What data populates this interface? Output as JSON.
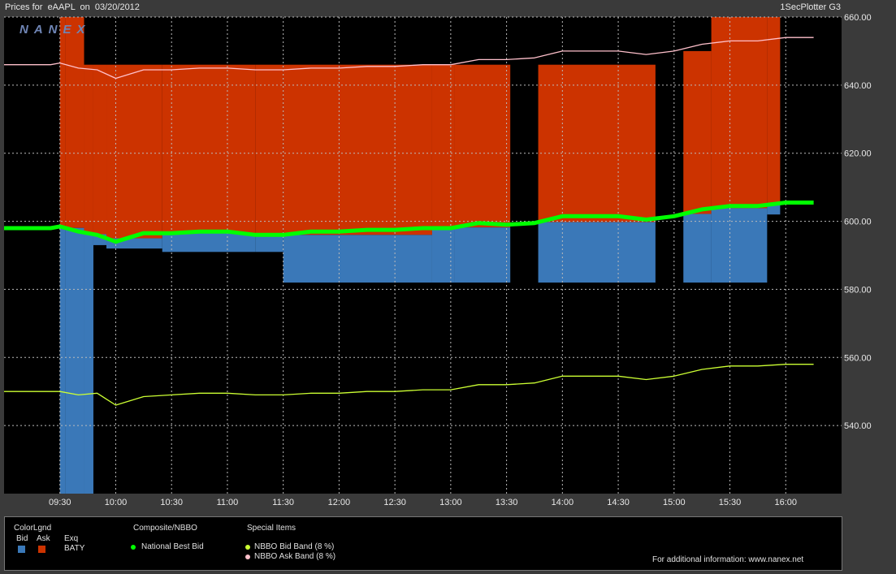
{
  "header": {
    "left": "Prices for  eAAPL  on  03/20/2012",
    "right": "1SecPlotter G3",
    "logo": "NANEX"
  },
  "chart_data": {
    "type": "line",
    "title": "",
    "xlabel": "",
    "ylabel": "",
    "x_ticks": [
      "09:30",
      "10:00",
      "10:30",
      "11:00",
      "11:30",
      "12:00",
      "12:30",
      "13:00",
      "13:30",
      "14:00",
      "14:30",
      "15:00",
      "15:30",
      "16:00"
    ],
    "y_ticks": [
      "660.00",
      "640.00",
      "620.00",
      "600.00",
      "580.00",
      "560.00",
      "540.00"
    ],
    "ylim": [
      520,
      660
    ],
    "xlim": [
      "09:00",
      "16:30"
    ],
    "grid": true,
    "y_axis_position": "right",
    "series": [
      {
        "name": "National Best Bid",
        "color": "#00ff00",
        "x": [
          "09:00",
          "09:25",
          "09:30",
          "09:40",
          "09:50",
          "10:00",
          "10:15",
          "10:30",
          "10:45",
          "11:00",
          "11:15",
          "11:30",
          "11:45",
          "12:00",
          "12:15",
          "12:30",
          "12:45",
          "13:00",
          "13:15",
          "13:30",
          "13:45",
          "14:00",
          "14:15",
          "14:30",
          "14:45",
          "15:00",
          "15:15",
          "15:30",
          "15:45",
          "16:00",
          "16:15"
        ],
        "values": [
          598,
          598,
          598.5,
          597,
          596,
          594,
          596.5,
          596.5,
          597,
          597,
          596,
          596,
          597,
          597,
          597.5,
          597.5,
          598,
          598,
          599.5,
          599,
          599.5,
          601.5,
          601.5,
          601.5,
          600.5,
          601.5,
          603.5,
          604.5,
          604.5,
          605.5,
          605.5
        ]
      },
      {
        "name": "NBBO Bid Band (8 %)",
        "color": "#ccff33",
        "x": [
          "09:00",
          "09:25",
          "09:30",
          "09:40",
          "09:50",
          "10:00",
          "10:15",
          "10:30",
          "10:45",
          "11:00",
          "11:15",
          "11:30",
          "11:45",
          "12:00",
          "12:15",
          "12:30",
          "12:45",
          "13:00",
          "13:15",
          "13:30",
          "13:45",
          "14:00",
          "14:15",
          "14:30",
          "14:45",
          "15:00",
          "15:15",
          "15:30",
          "15:45",
          "16:00",
          "16:15"
        ],
        "values": [
          550,
          550,
          550,
          549,
          549.5,
          546,
          548.5,
          549,
          549.5,
          549.5,
          549,
          549,
          549.5,
          549.5,
          550,
          550,
          550.5,
          550.5,
          552,
          552,
          552.5,
          554.5,
          554.5,
          554.5,
          553.5,
          554.5,
          556.5,
          557.5,
          557.5,
          558,
          558
        ]
      },
      {
        "name": "NBBO Ask Band (8 %)",
        "color": "#ffc0cb",
        "x": [
          "09:00",
          "09:25",
          "09:30",
          "09:40",
          "09:50",
          "10:00",
          "10:15",
          "10:30",
          "10:45",
          "11:00",
          "11:15",
          "11:30",
          "11:45",
          "12:00",
          "12:15",
          "12:30",
          "12:45",
          "13:00",
          "13:15",
          "13:30",
          "13:45",
          "14:00",
          "14:15",
          "14:30",
          "14:45",
          "15:00",
          "15:15",
          "15:30",
          "15:45",
          "16:00",
          "16:15"
        ],
        "values": [
          646,
          646,
          646.5,
          645,
          644.5,
          642,
          644.5,
          644.5,
          645,
          645,
          644.5,
          644.5,
          645,
          645,
          645.5,
          645.5,
          646,
          646,
          647.5,
          647.5,
          648,
          650,
          650,
          650,
          649,
          650,
          652,
          653,
          653,
          654,
          654
        ]
      }
    ],
    "exchange_bands": {
      "exchange": "BATY",
      "bid_color": "#3a78b8",
      "ask_color": "#cc3300",
      "segments": [
        {
          "from": "09:30",
          "to": "09:33",
          "bid_low": 520,
          "ask_high": 660
        },
        {
          "from": "09:33",
          "to": "09:43",
          "bid_low": 520,
          "ask_high": 660
        },
        {
          "from": "09:43",
          "to": "09:48",
          "bid_low": 520,
          "ask_high": 646
        },
        {
          "from": "09:48",
          "to": "09:55",
          "bid_low": 593,
          "ask_high": 646
        },
        {
          "from": "09:55",
          "to": "10:25",
          "bid_low": 592,
          "ask_high": 646
        },
        {
          "from": "10:25",
          "to": "11:15",
          "bid_low": 591,
          "ask_high": 646
        },
        {
          "from": "11:15",
          "to": "11:30",
          "bid_low": 591,
          "ask_high": 646
        },
        {
          "from": "11:30",
          "to": "12:50",
          "bid_low": 582,
          "ask_high": 646
        },
        {
          "from": "12:50",
          "to": "13:02",
          "bid_low": 582,
          "ask_high": 646
        },
        {
          "from": "13:02",
          "to": "13:32",
          "bid_low": 582,
          "ask_high": 646
        },
        {
          "from": "13:47",
          "to": "14:50",
          "bid_low": 582,
          "ask_high": 646
        },
        {
          "from": "15:05",
          "to": "15:20",
          "bid_low": 582,
          "ask_high": 650
        },
        {
          "from": "15:20",
          "to": "15:50",
          "bid_low": 582,
          "ask_high": 660
        },
        {
          "from": "15:50",
          "to": "15:57",
          "bid_low": 602,
          "ask_high": 660
        }
      ]
    }
  },
  "legend": {
    "colorlgnd_title": "ColorLgnd",
    "bid_label": "Bid",
    "ask_label": "Ask",
    "exq_label": "Exq",
    "exchange": "BATY",
    "composite_title": "Composite/NBBO",
    "composite_item": "National Best Bid",
    "special_title": "Special Items",
    "special_item_1": "NBBO Bid Band (8 %)",
    "special_item_2": "NBBO Ask Band (8 %)",
    "footer": "For additional information: www.nanex.net",
    "colors": {
      "bid": "#3a78b8",
      "ask": "#cc3300",
      "nbb": "#00ff00",
      "bid_band": "#ccff33",
      "ask_band": "#ffc0cb"
    }
  }
}
